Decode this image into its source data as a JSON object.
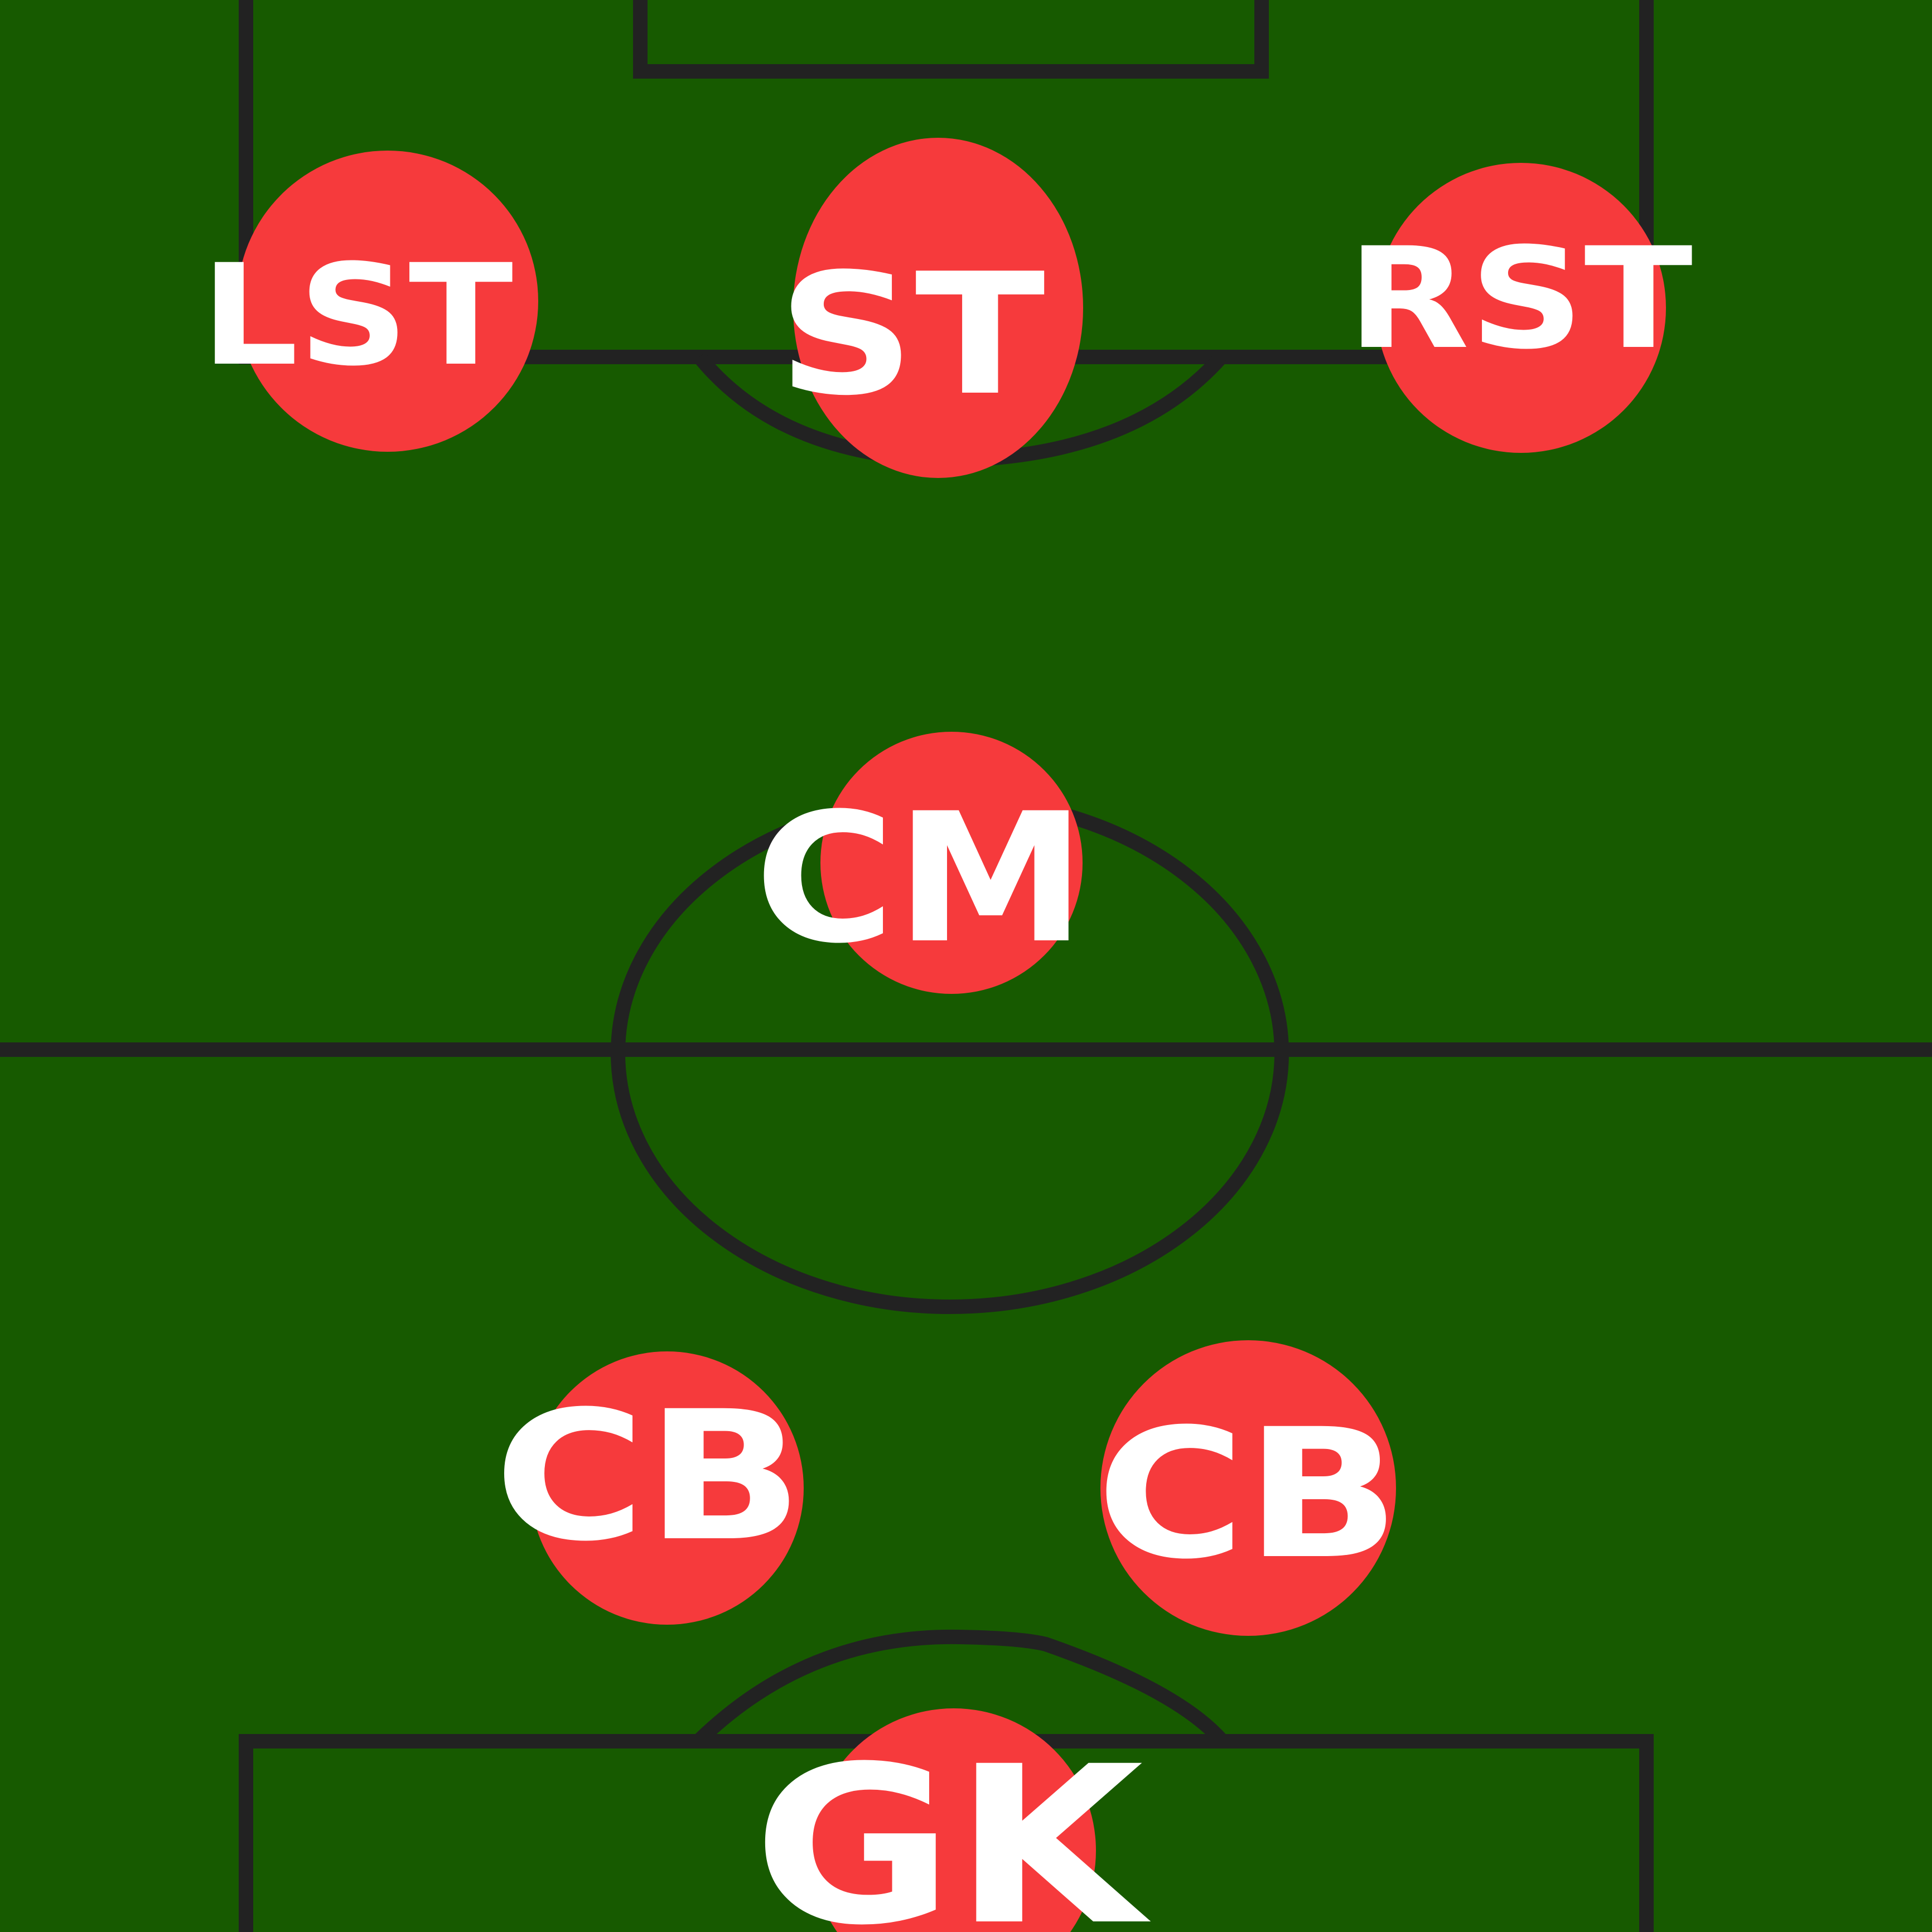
{
  "pitch": {
    "grass_color": "#175a00",
    "line_color": "#222222",
    "marker_color": "#f63a3c",
    "label_color": "#ffffff"
  },
  "positions": {
    "lst": "LST",
    "st": "ST",
    "rst": "RST",
    "cm": "CM",
    "cb_left": "CB",
    "cb_right": "CB",
    "gk": "GK"
  }
}
